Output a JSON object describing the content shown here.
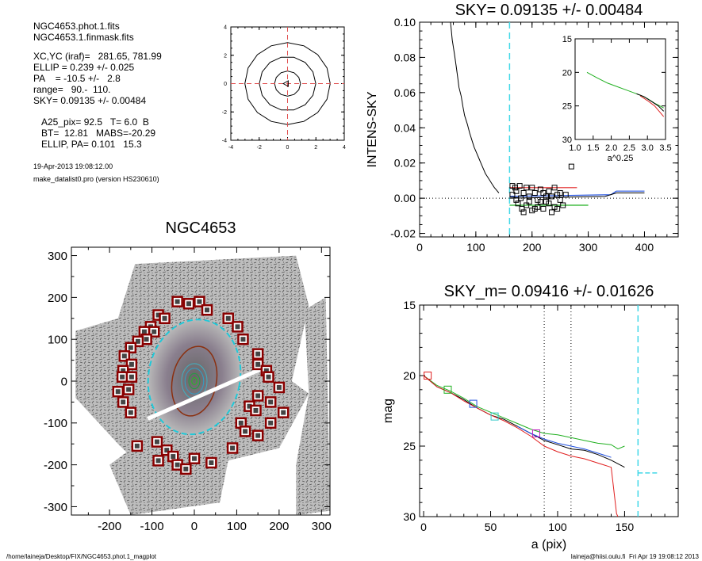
{
  "info": {
    "lines": [
      "NGC4653.phot.1.fits",
      "NGC4653.1.finmask.fits",
      "XC,YC (iraf)=   281.65, 781.99",
      "ELLIP = 0.239 +/- 0.025",
      "PA    = -10.5 +/-   2.8",
      "range=   90.-  110.",
      "SKY= 0.09135 +/- 0.00484",
      "A25_pix= 92.5   T= 6.0  B",
      "BT=  12.81   MABS=-20.29",
      "ELLIP, PA= 0.101   15.3"
    ],
    "date_line": "19-Apr-2013 19:08:12.00",
    "program_line": "make_datalist0.pro (version HS230610)"
  },
  "footer": {
    "left": "/home/laineja/Desktop/FIX/NGC4653.phot.1_magplot",
    "right": "laineja@hiisi.oulu.fi  Fri Apr 19 19:08:12 2013"
  },
  "chart_data": [
    {
      "id": "contour",
      "type": "contour",
      "title": "",
      "xlim": [
        -4,
        4
      ],
      "ylim": [
        -4,
        4
      ],
      "xticks": [
        "-4",
        "-2",
        "0",
        "2",
        "4"
      ],
      "yticks": [
        "-4",
        "-2",
        "0",
        "2",
        "4"
      ],
      "contour_radii": [
        0.9,
        1.95,
        2.95
      ],
      "crosshair_color": "#e05050"
    },
    {
      "id": "image",
      "type": "image",
      "title": "NGC4653",
      "xlim": [
        -290,
        320
      ],
      "ylim": [
        -320,
        320
      ],
      "xticks": [
        "-200",
        "-100",
        "0",
        "100",
        "200",
        "300"
      ],
      "yticks": [
        "-300",
        "-200",
        "-100",
        "0",
        "100",
        "200",
        "300"
      ],
      "ellipse_inner": {
        "a": 52,
        "b": 84,
        "pa_deg": -10.5
      },
      "ellipse_outer": {
        "a": 108,
        "b": 138,
        "pa_deg": -10.5
      },
      "mask_boxes": [
        [
          -40,
          190
        ],
        [
          -13,
          185
        ],
        [
          12,
          190
        ],
        [
          30,
          170
        ],
        [
          -85,
          158
        ],
        [
          -70,
          150
        ],
        [
          -103,
          130
        ],
        [
          -118,
          118
        ],
        [
          -95,
          118
        ],
        [
          -113,
          100
        ],
        [
          -133,
          95
        ],
        [
          -150,
          80
        ],
        [
          -165,
          60
        ],
        [
          -148,
          40
        ],
        [
          -168,
          25
        ],
        [
          -170,
          10
        ],
        [
          -148,
          10
        ],
        [
          -180,
          -25
        ],
        [
          -155,
          -20
        ],
        [
          -168,
          -50
        ],
        [
          -150,
          -75
        ],
        [
          80,
          150
        ],
        [
          102,
          130
        ],
        [
          115,
          100
        ],
        [
          150,
          65
        ],
        [
          150,
          40
        ],
        [
          170,
          25
        ],
        [
          175,
          10
        ],
        [
          200,
          -15
        ],
        [
          150,
          -35
        ],
        [
          180,
          -50
        ],
        [
          130,
          -60
        ],
        [
          145,
          -70
        ],
        [
          210,
          -75
        ],
        [
          180,
          -100
        ],
        [
          110,
          -100
        ],
        [
          120,
          -120
        ],
        [
          150,
          -130
        ],
        [
          90,
          -160
        ],
        [
          -88,
          -145
        ],
        [
          -65,
          -165
        ],
        [
          -50,
          -180
        ],
        [
          -40,
          -200
        ],
        [
          -85,
          -190
        ],
        [
          -20,
          -210
        ],
        [
          0,
          -185
        ],
        [
          40,
          -195
        ],
        [
          -135,
          -155
        ]
      ]
    },
    {
      "id": "sky",
      "type": "line",
      "title": "SKY= 0.09135 +/- 0.00484",
      "xlabel": "",
      "ylabel": "INTENS-SKY",
      "xlim": [
        0,
        460
      ],
      "ylim": [
        -0.022,
        0.1
      ],
      "xticks": [
        "0",
        "100",
        "200",
        "300",
        "400"
      ],
      "yticks": [
        "-0.02",
        "0.00",
        "0.02",
        "0.04",
        "0.06",
        "0.08",
        "0.10"
      ],
      "vline_x": 160,
      "profile": [
        [
          55,
          0.1
        ],
        [
          58,
          0.09
        ],
        [
          62,
          0.082
        ],
        [
          65,
          0.075
        ],
        [
          68,
          0.068
        ],
        [
          70,
          0.063
        ],
        [
          74,
          0.058
        ],
        [
          77,
          0.052
        ],
        [
          80,
          0.047
        ],
        [
          85,
          0.042
        ],
        [
          89,
          0.037
        ],
        [
          93,
          0.033
        ],
        [
          97,
          0.029
        ],
        [
          101,
          0.026
        ],
        [
          105,
          0.023
        ],
        [
          109,
          0.02
        ],
        [
          113,
          0.017
        ],
        [
          117,
          0.014
        ],
        [
          121,
          0.012
        ],
        [
          125,
          0.01
        ],
        [
          129,
          0.008
        ],
        [
          133,
          0.006
        ],
        [
          137,
          0.0045
        ],
        [
          141,
          0.003
        ]
      ],
      "squares": [
        [
          165,
          0.007
        ],
        [
          170,
          0.006
        ],
        [
          172,
          0.004
        ],
        [
          178,
          0.007
        ],
        [
          185,
          0.003
        ],
        [
          190,
          0.006
        ],
        [
          195,
          0.001
        ],
        [
          200,
          0.006
        ],
        [
          205,
          0.003
        ],
        [
          210,
          -0.001
        ],
        [
          215,
          0.005
        ],
        [
          220,
          0.003
        ],
        [
          225,
          -0.002
        ],
        [
          230,
          0.004
        ],
        [
          235,
          0.001
        ],
        [
          240,
          0.006
        ],
        [
          245,
          0.002
        ],
        [
          250,
          -0.001
        ],
        [
          255,
          -0.004
        ],
        [
          175,
          -0.003
        ],
        [
          182,
          -0.006
        ],
        [
          190,
          -0.004
        ],
        [
          200,
          -0.007
        ],
        [
          210,
          -0.005
        ],
        [
          220,
          -0.006
        ],
        [
          230,
          -0.003
        ],
        [
          240,
          -0.005
        ],
        [
          260,
          0.002
        ],
        [
          270,
          0.018
        ],
        [
          165,
          0.002
        ],
        [
          172,
          -0.001
        ],
        [
          180,
          0.0
        ],
        [
          195,
          -0.002
        ],
        [
          205,
          -0.006
        ],
        [
          215,
          -0.002
        ],
        [
          225,
          0.001
        ],
        [
          245,
          -0.006
        ],
        [
          185,
          -0.008
        ],
        [
          235,
          -0.008
        ],
        [
          250,
          0.003
        ]
      ],
      "bands": [
        {
          "color": "#e02020",
          "points": [
            [
              160,
              0.006
            ],
            [
              280,
              0.006
            ]
          ]
        },
        {
          "color": "#20b020",
          "points": [
            [
              160,
              -0.004
            ],
            [
              300,
              -0.004
            ]
          ]
        },
        {
          "color": "#2050e0",
          "points": [
            [
              160,
              0.001
            ],
            [
              340,
              0.002
            ],
            [
              350,
              0.004
            ],
            [
              400,
              0.004
            ]
          ]
        }
      ]
    },
    {
      "id": "inset",
      "type": "line",
      "title": "",
      "xlabel": "a^0.25",
      "xlim": [
        1.0,
        3.5
      ],
      "ylim": [
        30,
        15
      ],
      "xticks": [
        "1.0",
        "1.5",
        "2.0",
        "2.5",
        "3.0",
        "3.5"
      ],
      "yticks": [
        "15",
        "20",
        "25",
        "30"
      ],
      "series": [
        {
          "color": "#20b020",
          "points": [
            [
              1.33,
              20.0
            ],
            [
              1.6,
              20.8
            ],
            [
              1.9,
              21.6
            ],
            [
              2.15,
              22.1
            ],
            [
              2.4,
              22.6
            ],
            [
              2.6,
              23.0
            ],
            [
              2.8,
              23.4
            ],
            [
              3.0,
              23.9
            ],
            [
              3.2,
              24.6
            ],
            [
              3.45,
              25.3
            ]
          ]
        },
        {
          "color": "#000000",
          "points": [
            [
              2.7,
              23.2
            ],
            [
              2.9,
              23.6
            ],
            [
              3.1,
              24.3
            ],
            [
              3.3,
              25.0
            ],
            [
              3.45,
              25.8
            ]
          ]
        },
        {
          "color": "#e02020",
          "points": [
            [
              2.8,
              23.5
            ],
            [
              3.0,
              24.2
            ],
            [
              3.2,
              25.0
            ],
            [
              3.45,
              26.6
            ]
          ]
        }
      ]
    },
    {
      "id": "mag",
      "type": "line",
      "title": "SKY_m=  0.09416 +/- 0.01626",
      "xlabel": "a (pix)",
      "ylabel": "mag",
      "xlim": [
        -3,
        190
      ],
      "ylim": [
        30,
        15
      ],
      "xticks": [
        "0",
        "50",
        "100",
        "150"
      ],
      "yticks": [
        "15",
        "20",
        "25",
        "30"
      ],
      "vlines_dotted": [
        90,
        110
      ],
      "vline_cyan": 160,
      "sky_level": {
        "x": [
          160,
          175
        ],
        "y": 26.9
      },
      "series": [
        {
          "color": "#20b020",
          "points": [
            [
              0,
              20.0
            ],
            [
              10,
              20.7
            ],
            [
              20,
              21.1
            ],
            [
              30,
              21.6
            ],
            [
              40,
              22.2
            ],
            [
              50,
              22.6
            ],
            [
              60,
              23.0
            ],
            [
              70,
              23.4
            ],
            [
              80,
              23.8
            ],
            [
              90,
              24.1
            ],
            [
              100,
              24.2
            ],
            [
              110,
              24.4
            ],
            [
              120,
              24.6
            ],
            [
              130,
              24.8
            ],
            [
              140,
              24.9
            ],
            [
              145,
              25.2
            ],
            [
              150,
              25.0
            ]
          ]
        },
        {
          "color": "#000000",
          "points": [
            [
              0,
              20.0
            ],
            [
              10,
              20.8
            ],
            [
              20,
              21.2
            ],
            [
              30,
              21.7
            ],
            [
              40,
              22.3
            ],
            [
              50,
              22.8
            ],
            [
              60,
              23.1
            ],
            [
              70,
              23.6
            ],
            [
              80,
              24.1
            ],
            [
              90,
              24.6
            ],
            [
              100,
              24.9
            ],
            [
              110,
              25.2
            ],
            [
              120,
              25.3
            ],
            [
              130,
              25.6
            ],
            [
              140,
              26.0
            ],
            [
              150,
              26.5
            ]
          ]
        },
        {
          "color": "#e02020",
          "points": [
            [
              0,
              20.0
            ],
            [
              10,
              20.8
            ],
            [
              20,
              21.2
            ],
            [
              30,
              21.8
            ],
            [
              40,
              22.3
            ],
            [
              50,
              22.8
            ],
            [
              60,
              23.2
            ],
            [
              70,
              23.7
            ],
            [
              80,
              24.3
            ],
            [
              90,
              25.0
            ],
            [
              100,
              25.4
            ],
            [
              110,
              25.7
            ],
            [
              120,
              25.9
            ],
            [
              130,
              26.2
            ],
            [
              140,
              26.5
            ],
            [
              144,
              29.8
            ],
            [
              145,
              30.0
            ]
          ]
        },
        {
          "color": "#2050e0",
          "points": [
            [
              70,
              23.6
            ],
            [
              80,
              24.1
            ],
            [
              90,
              24.5
            ],
            [
              100,
              24.8
            ],
            [
              110,
              25.0
            ],
            [
              120,
              25.2
            ],
            [
              130,
              25.5
            ],
            [
              140,
              25.8
            ]
          ]
        }
      ],
      "boxes": [
        {
          "x": 3,
          "y": 20.0,
          "color": "#e02020"
        },
        {
          "x": 18,
          "y": 21.0,
          "color": "#20b020"
        },
        {
          "x": 37,
          "y": 22.0,
          "color": "#2050e0"
        },
        {
          "x": 53,
          "y": 22.9,
          "color": "#30c8c8"
        },
        {
          "x": 84,
          "y": 24.1,
          "color": "#c020c0"
        }
      ]
    }
  ]
}
